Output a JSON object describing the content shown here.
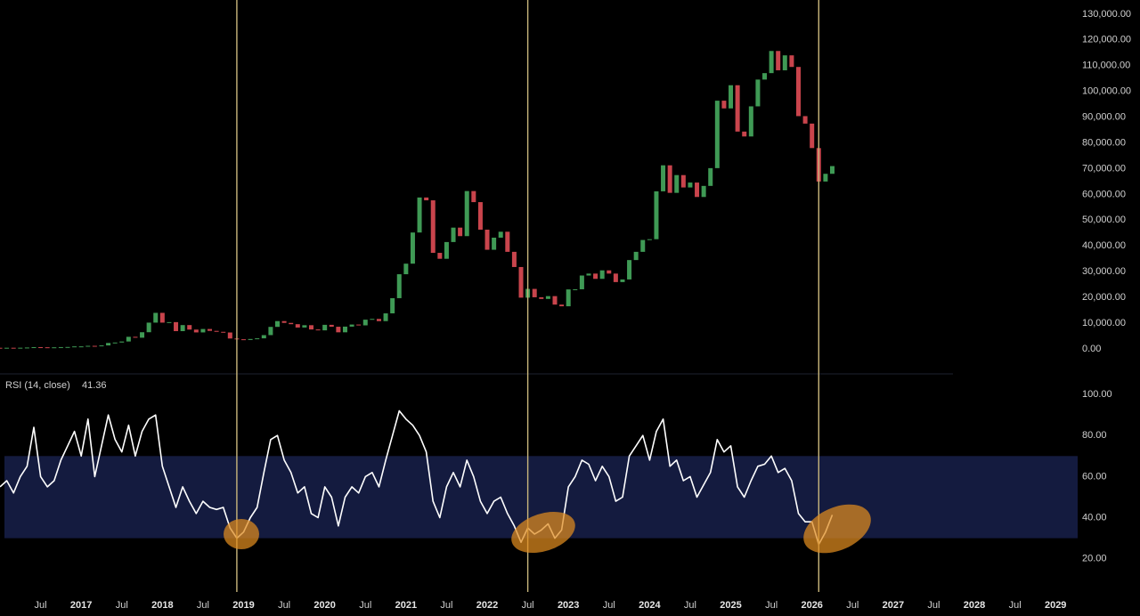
{
  "chart_data": {
    "type": "candlestick",
    "x": [
      "2016-01",
      "2016-02",
      "2016-03",
      "2016-04",
      "2016-05",
      "2016-06",
      "2016-07",
      "2016-08",
      "2016-09",
      "2016-10",
      "2016-11",
      "2016-12",
      "2017-01",
      "2017-02",
      "2017-03",
      "2017-04",
      "2017-05",
      "2017-06",
      "2017-07",
      "2017-08",
      "2017-09",
      "2017-10",
      "2017-11",
      "2017-12",
      "2018-01",
      "2018-02",
      "2018-03",
      "2018-04",
      "2018-05",
      "2018-06",
      "2018-07",
      "2018-08",
      "2018-09",
      "2018-10",
      "2018-11",
      "2018-12",
      "2019-01",
      "2019-02",
      "2019-03",
      "2019-04",
      "2019-05",
      "2019-06",
      "2019-07",
      "2019-08",
      "2019-09",
      "2019-10",
      "2019-11",
      "2019-12",
      "2020-01",
      "2020-02",
      "2020-03",
      "2020-04",
      "2020-05",
      "2020-06",
      "2020-07",
      "2020-08",
      "2020-09",
      "2020-10",
      "2020-11",
      "2020-12",
      "2021-01",
      "2021-02",
      "2021-03",
      "2021-04",
      "2021-05",
      "2021-06",
      "2021-07",
      "2021-08",
      "2021-09",
      "2021-10",
      "2021-11",
      "2021-12",
      "2022-01",
      "2022-02",
      "2022-03",
      "2022-04",
      "2022-05",
      "2022-06",
      "2022-07",
      "2022-08",
      "2022-09",
      "2022-10",
      "2022-11",
      "2022-12",
      "2023-01",
      "2023-02",
      "2023-03",
      "2023-04",
      "2023-05",
      "2023-06",
      "2023-07",
      "2023-08",
      "2023-09",
      "2023-10",
      "2023-11",
      "2023-12",
      "2024-01",
      "2024-02",
      "2024-03",
      "2024-04",
      "2024-05",
      "2024-06",
      "2024-07",
      "2024-08",
      "2024-09",
      "2024-10",
      "2024-11",
      "2024-12",
      "2025-01",
      "2025-02",
      "2025-03",
      "2025-04",
      "2025-05",
      "2025-06",
      "2025-07",
      "2025-08",
      "2025-09",
      "2025-10",
      "2025-11",
      "2025-12",
      "2026-01",
      "2026-02",
      "2026-03",
      "2026-04"
    ],
    "open": [
      430,
      370,
      437,
      416,
      448,
      531,
      673,
      624,
      575,
      609,
      700,
      742,
      963,
      970,
      1190,
      1080,
      1350,
      2300,
      2480,
      2875,
      4700,
      4340,
      6470,
      10200,
      14000,
      10200,
      10400,
      6900,
      9250,
      7500,
      6400,
      7730,
      7000,
      6630,
      6370,
      4040,
      3740,
      3460,
      3850,
      4100,
      5350,
      8550,
      10800,
      10100,
      9600,
      8300,
      9200,
      7550,
      7200,
      9350,
      8600,
      6440,
      8650,
      9460,
      9140,
      11350,
      11650,
      10780,
      13800,
      19700,
      29000,
      33100,
      45200,
      58800,
      57700,
      37300,
      35000,
      41500,
      47100,
      43800,
      61300,
      57000,
      46300,
      38500,
      43200,
      45500,
      37700,
      31800,
      19900,
      23300,
      20050,
      19400,
      20500,
      17200,
      16550,
      23100,
      23150,
      28500,
      29250,
      27200,
      30500,
      29250,
      25950,
      26970,
      34500,
      37700,
      42300,
      42600,
      61200,
      71300,
      60600,
      67500,
      62700,
      64600,
      59000,
      63300,
      70200,
      96400,
      93400,
      102400,
      84400,
      82500,
      94200,
      104600,
      107100,
      115700,
      108200,
      114000,
      109500,
      90400,
      87500,
      78000,
      65000,
      68000
    ],
    "close": [
      370,
      437,
      416,
      448,
      531,
      673,
      624,
      575,
      609,
      700,
      742,
      963,
      970,
      1190,
      1080,
      1350,
      2300,
      2480,
      2875,
      4700,
      4340,
      6470,
      10200,
      14000,
      10200,
      10400,
      6900,
      9250,
      7500,
      6400,
      7730,
      7000,
      6630,
      6370,
      4040,
      3740,
      3460,
      3850,
      4100,
      5350,
      8550,
      10800,
      10100,
      9600,
      8300,
      9200,
      7550,
      7200,
      9350,
      8600,
      6440,
      8650,
      9460,
      9140,
      11350,
      11650,
      10780,
      13800,
      19700,
      29000,
      33100,
      45200,
      58800,
      57700,
      37300,
      35000,
      41500,
      47100,
      43800,
      61300,
      57000,
      46300,
      38500,
      43200,
      45500,
      37700,
      31800,
      19900,
      23300,
      20050,
      19400,
      20500,
      17200,
      16550,
      23100,
      23150,
      28500,
      29250,
      27200,
      30500,
      29250,
      25950,
      26970,
      34500,
      37700,
      42300,
      42600,
      61200,
      71300,
      60600,
      67500,
      62700,
      64600,
      59000,
      63300,
      70200,
      96400,
      93400,
      102400,
      84400,
      82500,
      94200,
      104600,
      107100,
      115700,
      108200,
      114000,
      109500,
      90400,
      87500,
      78000,
      65000,
      68000,
      71000
    ],
    "up_color": "#3f9a55",
    "down_color": "#c9444c",
    "xlim": [
      "2016-01",
      "2029-04"
    ],
    "xticks": [
      {
        "value": "2016-07",
        "label": "Jul"
      },
      {
        "value": "2017-01",
        "label": "2017"
      },
      {
        "value": "2017-07",
        "label": "Jul"
      },
      {
        "value": "2018-01",
        "label": "2018"
      },
      {
        "value": "2018-07",
        "label": "Jul"
      },
      {
        "value": "2019-01",
        "label": "2019"
      },
      {
        "value": "2019-07",
        "label": "Jul"
      },
      {
        "value": "2020-01",
        "label": "2020"
      },
      {
        "value": "2020-07",
        "label": "Jul"
      },
      {
        "value": "2021-01",
        "label": "2021"
      },
      {
        "value": "2021-07",
        "label": "Jul"
      },
      {
        "value": "2022-01",
        "label": "2022"
      },
      {
        "value": "2022-07",
        "label": "Jul"
      },
      {
        "value": "2023-01",
        "label": "2023"
      },
      {
        "value": "2023-07",
        "label": "Jul"
      },
      {
        "value": "2024-01",
        "label": "2024"
      },
      {
        "value": "2024-07",
        "label": "Jul"
      },
      {
        "value": "2025-01",
        "label": "2025"
      },
      {
        "value": "2025-07",
        "label": "Jul"
      },
      {
        "value": "2026-01",
        "label": "2026"
      },
      {
        "value": "2026-07",
        "label": "Jul"
      },
      {
        "value": "2027-01",
        "label": "2027"
      },
      {
        "value": "2027-07",
        "label": "Jul"
      },
      {
        "value": "2028-01",
        "label": "2028"
      },
      {
        "value": "2028-07",
        "label": "Jul"
      },
      {
        "value": "2029-01",
        "label": "2029"
      }
    ],
    "ylim": [
      -9700,
      135500
    ],
    "yticks": [
      {
        "value": 0,
        "label": "0.00"
      },
      {
        "value": 10000,
        "label": "10,000.00"
      },
      {
        "value": 20000,
        "label": "20,000.00"
      },
      {
        "value": 30000,
        "label": "30,000.00"
      },
      {
        "value": 40000,
        "label": "40,000.00"
      },
      {
        "value": 50000,
        "label": "50,000.00"
      },
      {
        "value": 60000,
        "label": "60,000.00"
      },
      {
        "value": 70000,
        "label": "70,000.00"
      },
      {
        "value": 80000,
        "label": "80,000.00"
      },
      {
        "value": 90000,
        "label": "90,000.00"
      },
      {
        "value": 100000,
        "label": "100,000.00"
      },
      {
        "value": 110000,
        "label": "110,000.00"
      },
      {
        "value": 120000,
        "label": "120,000.00"
      },
      {
        "value": 130000,
        "label": "130,000.00"
      }
    ],
    "vlines": [
      "2018-12",
      "2022-07",
      "2026-02"
    ],
    "vline_color": "#c9b77c",
    "indicator": {
      "type": "line",
      "title": "RSI (14, close)",
      "color": "#ffffff",
      "values": [
        55,
        58,
        52,
        60,
        65,
        84,
        60,
        55,
        58,
        68,
        75,
        82,
        70,
        88,
        60,
        75,
        90,
        78,
        72,
        85,
        70,
        82,
        88,
        90,
        65,
        55,
        45,
        55,
        48,
        42,
        48,
        45,
        44,
        45,
        35,
        30,
        33,
        40,
        45,
        62,
        78,
        80,
        68,
        62,
        52,
        55,
        42,
        40,
        55,
        50,
        36,
        50,
        55,
        52,
        60,
        62,
        55,
        68,
        80,
        92,
        88,
        85,
        80,
        72,
        48,
        40,
        55,
        62,
        55,
        68,
        60,
        48,
        42,
        48,
        50,
        42,
        36,
        28,
        35,
        32,
        34,
        37,
        30,
        34,
        55,
        60,
        68,
        66,
        58,
        65,
        60,
        48,
        50,
        70,
        75,
        80,
        68,
        82,
        88,
        65,
        68,
        58,
        60,
        50,
        56,
        62,
        78,
        72,
        75,
        55,
        50,
        58,
        65,
        66,
        70,
        62,
        64,
        58,
        42,
        38,
        38,
        27,
        33,
        41.36
      ],
      "band": [
        30,
        70
      ],
      "band_color": "#17204a",
      "ylim": [
        6,
        110
      ],
      "yticks": [
        {
          "value": 20,
          "label": "20.00"
        },
        {
          "value": 40,
          "label": "40.00"
        },
        {
          "value": 60,
          "label": "60.00"
        },
        {
          "value": 80,
          "label": "80.00"
        },
        {
          "value": 100,
          "label": "100.00"
        }
      ]
    }
  }
}
